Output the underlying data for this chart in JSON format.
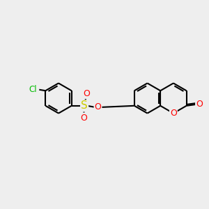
{
  "background_color": "#eeeeee",
  "atom_colors": {
    "C": "#000000",
    "O": "#ff0000",
    "S": "#cccc00",
    "Cl": "#00bb00"
  },
  "bond_color": "#000000",
  "bond_width": 1.5,
  "figsize": [
    3.0,
    3.0
  ],
  "dpi": 100
}
